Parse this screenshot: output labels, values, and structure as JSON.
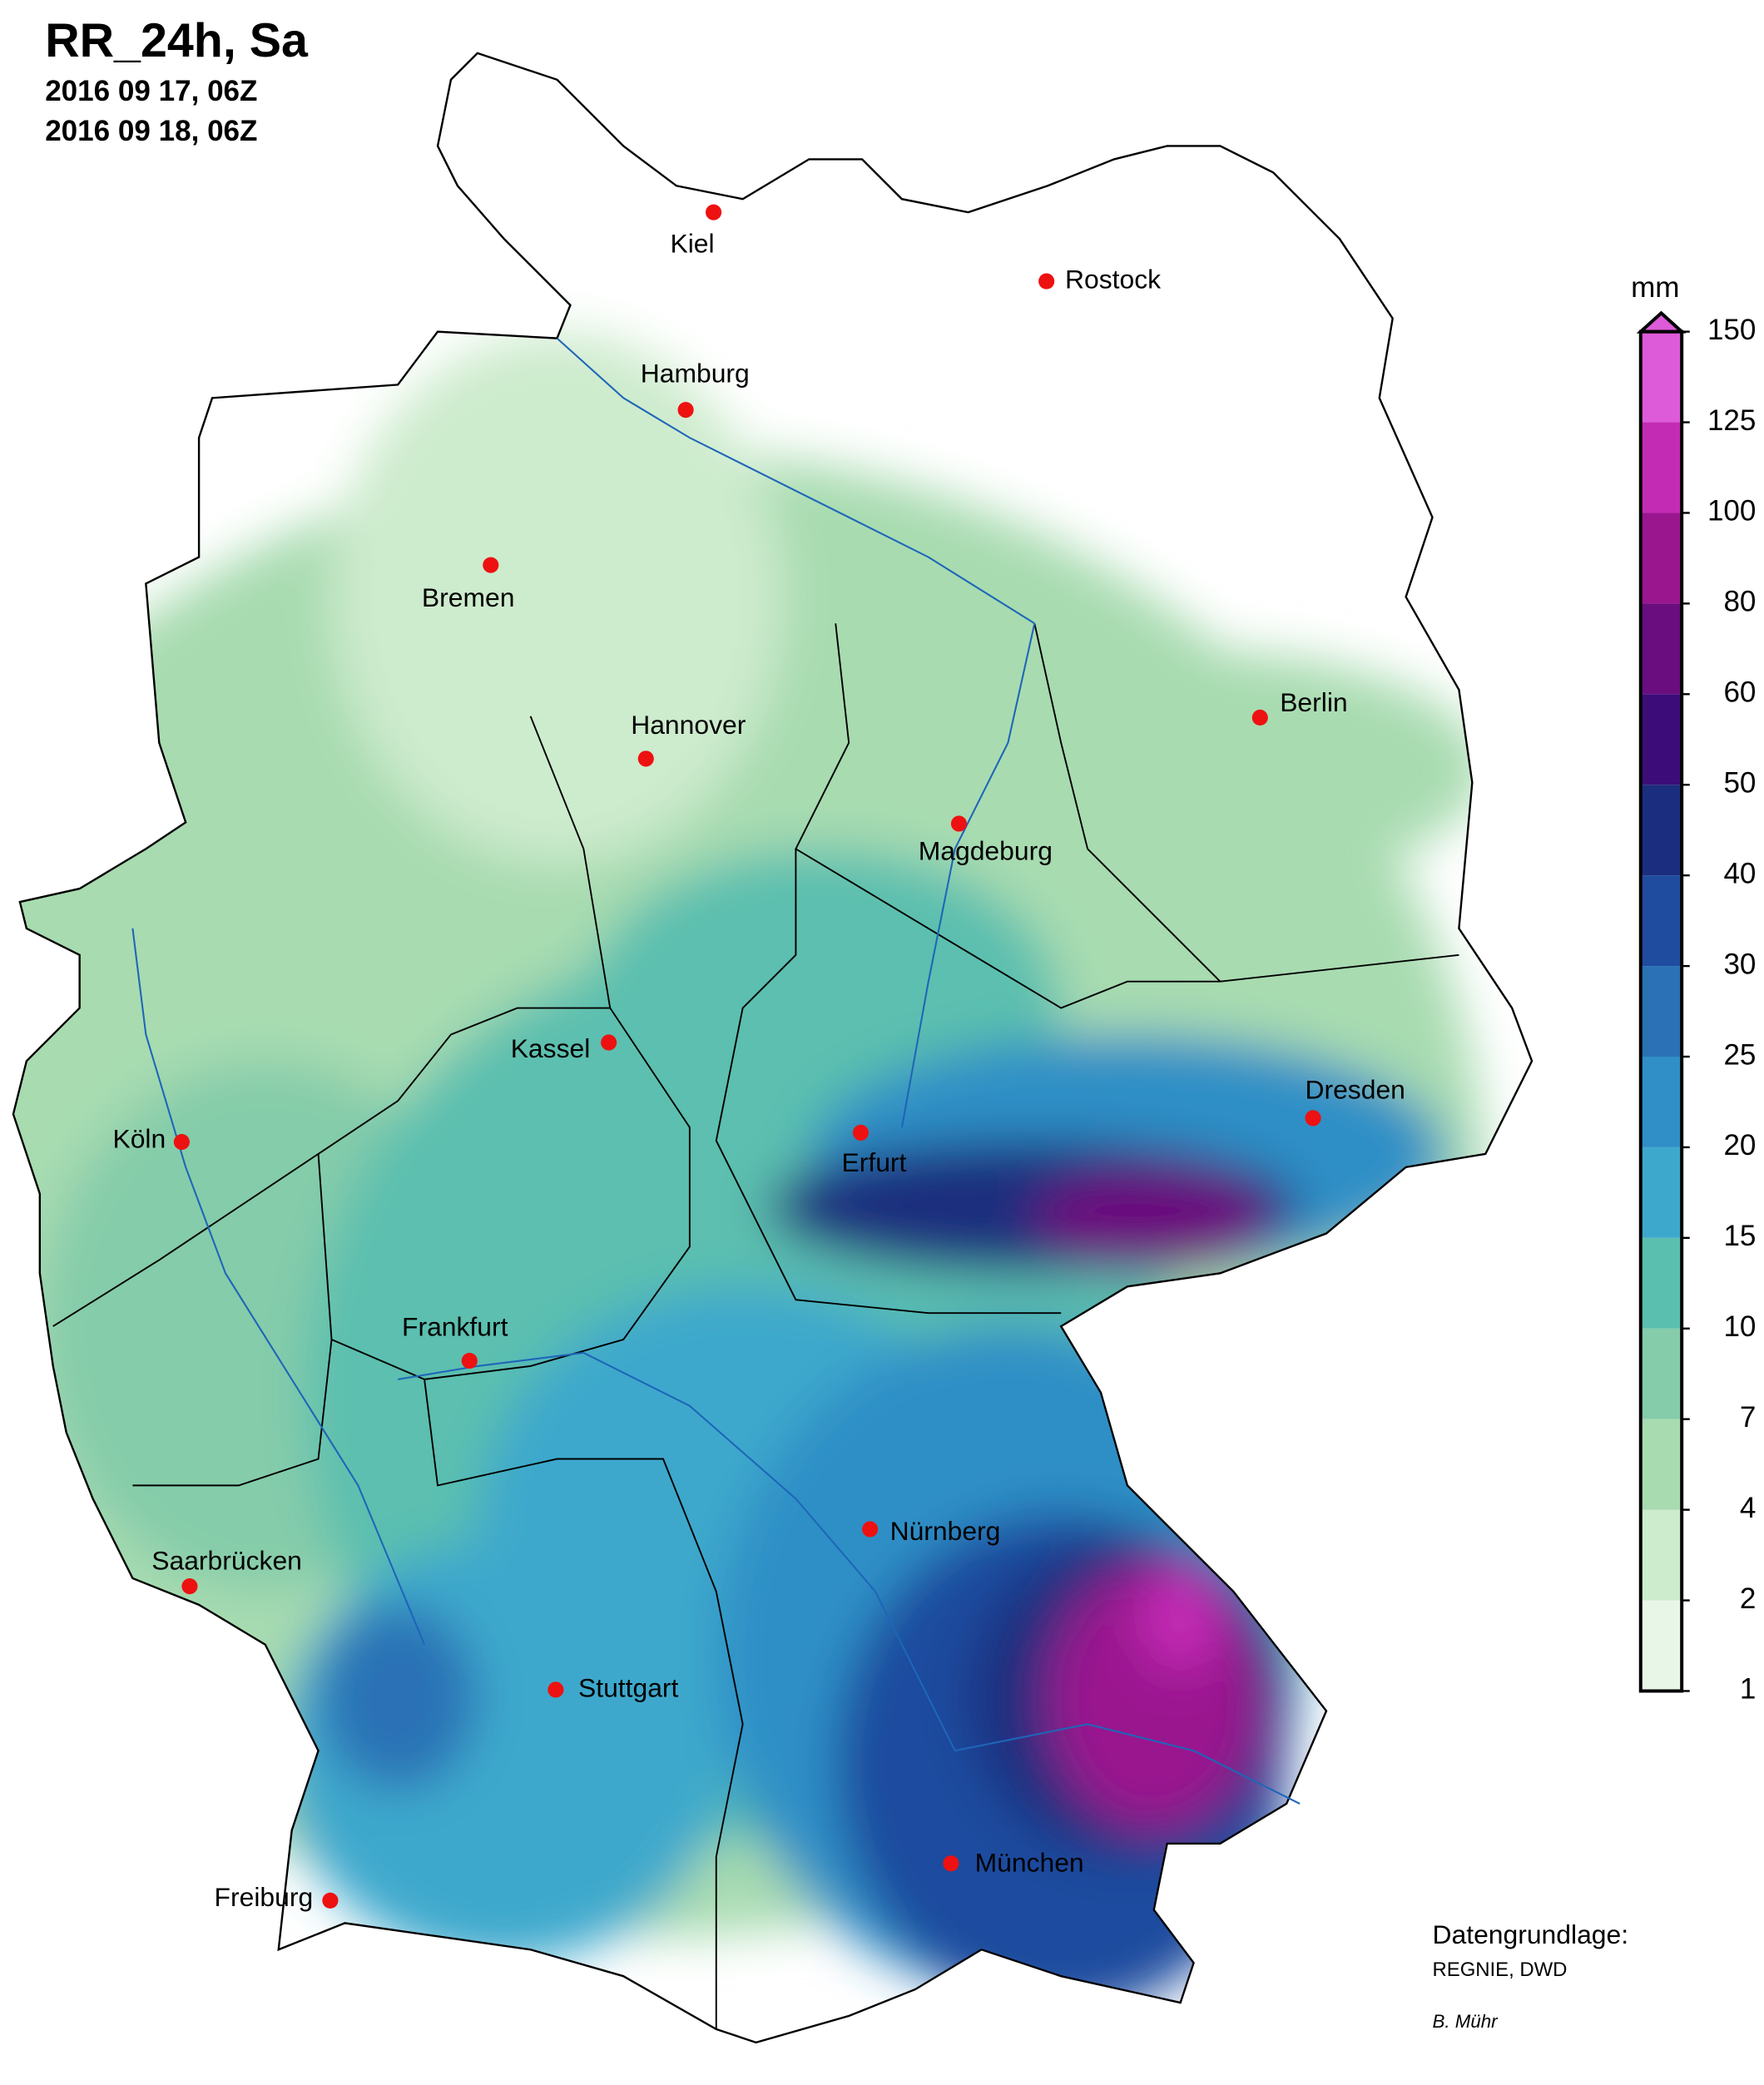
{
  "title": "RR_24h, Sa",
  "period": [
    "2016 09 17, 06Z",
    "2016 09 18, 06Z"
  ],
  "cities": [
    "Kiel",
    "Rostock",
    "Hamburg",
    "Bremen",
    "Hannover",
    "Magdeburg",
    "Berlin",
    "Kassel",
    "Köln",
    "Erfurt",
    "Dresden",
    "Frankfurt",
    "Nürnberg",
    "Saarbrücken",
    "Stuttgart",
    "München",
    "Freiburg"
  ],
  "colorbar": {
    "unit": "mm",
    "ticks": [
      1,
      2,
      4,
      7,
      10,
      15,
      20,
      25,
      30,
      40,
      50,
      60,
      80,
      100,
      125,
      150
    ],
    "colors": [
      "#e8f6e8",
      "#cdebcd",
      "#a8dbb0",
      "#85ccaa",
      "#5bbfaf",
      "#3ea8cc",
      "#2f8fc6",
      "#2a72b5",
      "#1f4c9f",
      "#1b2d7e",
      "#3c0d78",
      "#6a0d7e",
      "#9a168f",
      "#c42bb5",
      "#dd5ad8"
    ]
  },
  "credits": {
    "source_label": "Datengrundlage:",
    "source": "REGNIE, DWD",
    "author": "B. Mühr"
  }
}
